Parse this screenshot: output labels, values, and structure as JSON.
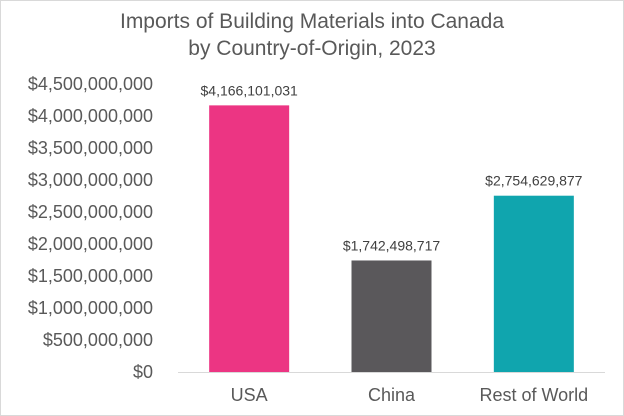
{
  "chart_data": {
    "type": "bar",
    "title": "Imports of Building Materials into Canada",
    "subtitle": "by Country-of-Origin, 2023",
    "xlabel": "",
    "ylabel": "",
    "categories": [
      "USA",
      "China",
      "Rest of World"
    ],
    "values": [
      4166101031,
      1742498717,
      2754629877
    ],
    "data_labels": [
      "$4,166,101,031",
      "$1,742,498,717",
      "$2,754,629,877"
    ],
    "colors": [
      "#ec3583",
      "#5a585b",
      "#10a5ae"
    ],
    "ylim": [
      0,
      4500000000
    ],
    "y_ticks": [
      0,
      500000000,
      1000000000,
      1500000000,
      2000000000,
      2500000000,
      3000000000,
      3500000000,
      4000000000,
      4500000000
    ],
    "y_tick_labels": [
      "$0",
      "$500,000,000",
      "$1,000,000,000",
      "$1,500,000,000",
      "$2,000,000,000",
      "$2,500,000,000",
      "$3,000,000,000",
      "$3,500,000,000",
      "$4,000,000,000",
      "$4,500,000,000"
    ],
    "grid": false,
    "legend": "none"
  }
}
